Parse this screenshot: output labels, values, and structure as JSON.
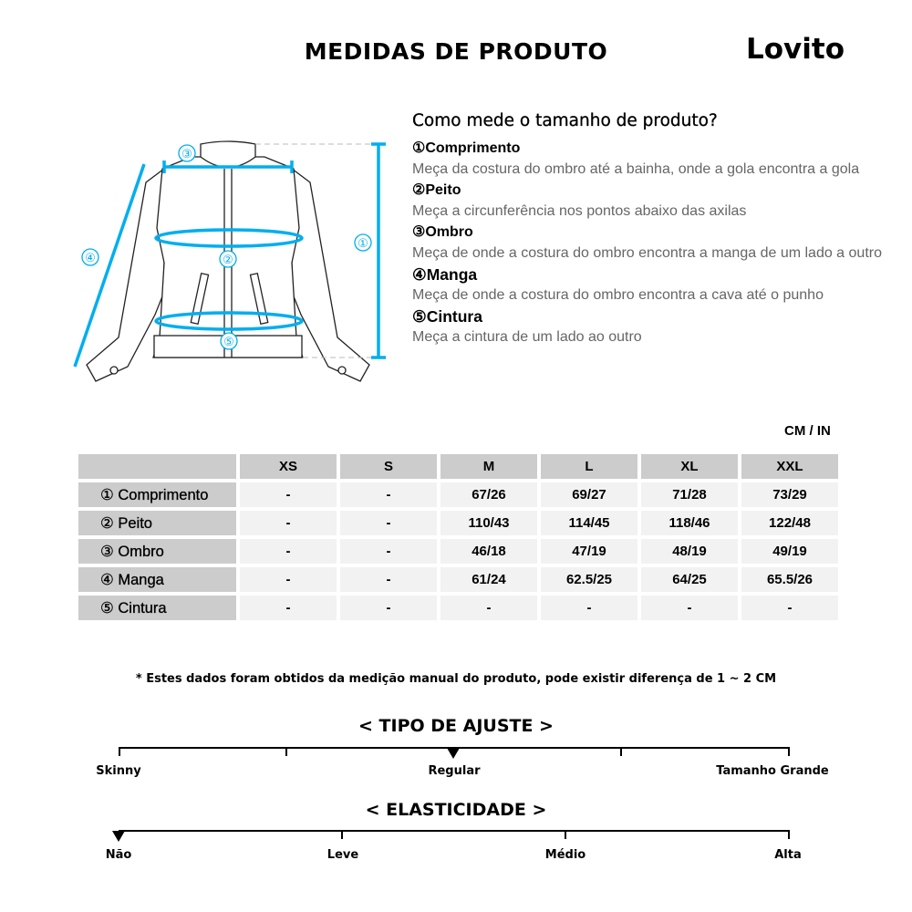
{
  "header": {
    "title": "MEDIDAS DE PRODUTO",
    "brand": "Lovito"
  },
  "accent_color": "#00aeef",
  "guide": {
    "title": "Como mede o tamanho de produto?",
    "items": [
      {
        "num": "①",
        "name": "Comprimento",
        "desc": "Meça da costura do ombro até a bainha, onde a gola encontra a gola"
      },
      {
        "num": "②",
        "name": "Peito",
        "desc": "Meça a circunferência nos pontos abaixo das axilas"
      },
      {
        "num": "③",
        "name": "Ombro",
        "desc": "Meça de onde a costura do ombro encontra a manga de um lado a outro"
      },
      {
        "num": "④",
        "name": "Manga",
        "desc": "Meça de onde a costura do ombro encontra a cava até o punho"
      },
      {
        "num": "⑤",
        "name": "Cintura",
        "desc": "Meça a cintura de um lado ao outro"
      }
    ]
  },
  "diagram": {
    "labels": [
      "①",
      "②",
      "③",
      "④",
      "⑤"
    ]
  },
  "table": {
    "unit": "CM / IN",
    "sizes": [
      "XS",
      "S",
      "M",
      "L",
      "XL",
      "XXL"
    ],
    "rows": [
      {
        "label": "① Comprimento",
        "values": [
          "-",
          "-",
          "67/26",
          "69/27",
          "71/28",
          "73/29"
        ]
      },
      {
        "label": "② Peito",
        "values": [
          "-",
          "-",
          "110/43",
          "114/45",
          "118/46",
          "122/48"
        ]
      },
      {
        "label": "③ Ombro",
        "values": [
          "-",
          "-",
          "46/18",
          "47/19",
          "48/19",
          "49/19"
        ]
      },
      {
        "label": "④ Manga",
        "values": [
          "-",
          "-",
          "61/24",
          "62.5/25",
          "64/25",
          "65.5/26"
        ]
      },
      {
        "label": "⑤ Cintura",
        "values": [
          "-",
          "-",
          "-",
          "-",
          "-",
          "-"
        ]
      }
    ]
  },
  "note": "* Estes dados foram obtidos da medição manual do produto, pode existir diferença de 1 ~ 2 CM",
  "fit": {
    "title": "< TIPO DE AJUSTE >",
    "labels": [
      "Skinny",
      "Regular",
      "Tamanho Grande"
    ],
    "selected": "Regular"
  },
  "elasticity": {
    "title": "< ELASTICIDADE >",
    "labels": [
      "Não",
      "Leve",
      "Médio",
      "Alta"
    ],
    "selected": "Não"
  }
}
